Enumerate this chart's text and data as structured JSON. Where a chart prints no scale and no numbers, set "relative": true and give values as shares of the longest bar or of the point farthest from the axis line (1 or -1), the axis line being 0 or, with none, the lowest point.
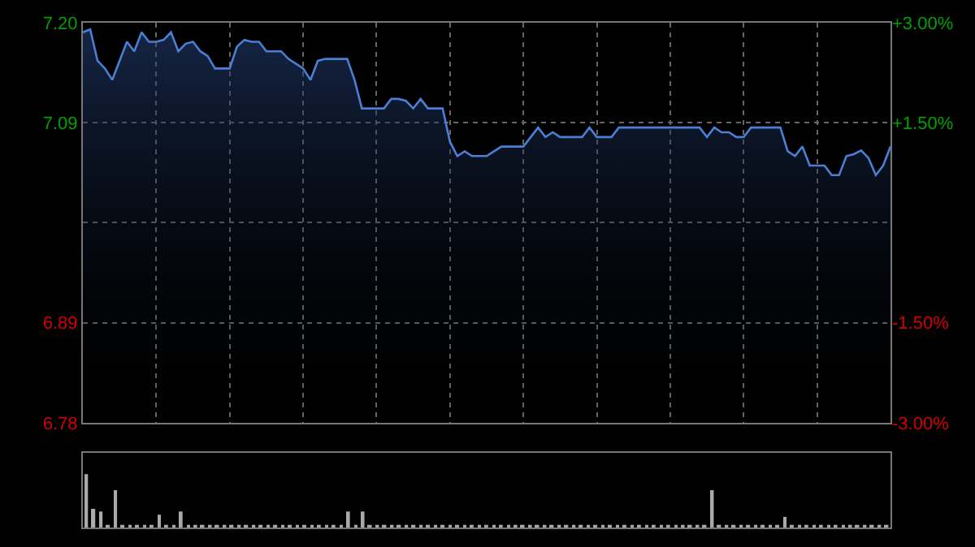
{
  "chart_data": [
    {
      "type": "area",
      "color": "#4a7fd4",
      "categories": [
        null,
        null,
        null,
        null,
        null,
        null,
        null,
        null,
        null,
        null,
        null,
        null,
        null,
        null,
        null,
        null,
        null,
        null,
        null,
        null,
        null,
        null,
        null,
        null,
        null,
        null,
        null,
        null,
        null,
        null,
        null,
        null,
        null,
        null,
        null,
        null,
        null,
        null,
        null,
        null,
        null,
        null,
        null,
        null,
        null,
        null,
        null,
        null,
        null,
        null,
        null,
        null,
        null,
        null,
        null,
        null,
        null,
        null,
        null,
        null,
        null,
        null,
        null,
        null,
        null,
        null,
        null,
        null,
        null,
        null,
        null,
        null,
        null,
        null,
        null,
        null,
        null,
        null,
        null,
        null,
        null,
        null,
        null,
        null,
        null,
        null,
        null,
        null,
        null,
        null,
        null,
        null,
        null,
        null,
        null,
        null,
        null,
        null,
        null,
        null,
        null,
        null,
        null,
        null,
        null,
        null,
        null,
        null,
        null,
        null,
        null
      ],
      "values": [
        7.19,
        7.193,
        7.16,
        7.152,
        7.14,
        7.16,
        7.18,
        7.17,
        7.19,
        7.18,
        7.18,
        7.182,
        7.19,
        7.17,
        7.178,
        7.18,
        7.17,
        7.165,
        7.152,
        7.152,
        7.152,
        7.175,
        7.182,
        7.18,
        7.18,
        7.17,
        7.17,
        7.17,
        7.162,
        7.157,
        7.152,
        7.14,
        7.16,
        7.162,
        7.162,
        7.162,
        7.162,
        7.14,
        7.11,
        7.11,
        7.11,
        7.11,
        7.12,
        7.12,
        7.118,
        7.11,
        7.12,
        7.11,
        7.11,
        7.11,
        7.075,
        7.06,
        7.065,
        7.06,
        7.06,
        7.06,
        7.065,
        7.07,
        7.07,
        7.07,
        7.07,
        7.08,
        7.09,
        7.08,
        7.085,
        7.08,
        7.08,
        7.08,
        7.08,
        7.09,
        7.08,
        7.08,
        7.08,
        7.09,
        7.09,
        7.09,
        7.09,
        7.09,
        7.09,
        7.09,
        7.09,
        7.09,
        7.09,
        7.09,
        7.09,
        7.08,
        7.09,
        7.085,
        7.085,
        7.08,
        7.08,
        7.09,
        7.09,
        7.09,
        7.09,
        7.09,
        7.065,
        7.06,
        7.07,
        7.05,
        7.05,
        7.05,
        7.04,
        7.04,
        7.06,
        7.062,
        7.066,
        7.058,
        7.04,
        7.05,
        7.07
      ],
      "ylim": [
        6.78,
        7.2
      ],
      "yticks": [
        {
          "value": 6.78,
          "label": "6.78"
        },
        {
          "value": 6.885,
          "label": "6.89"
        },
        {
          "value": 6.99,
          "label": null
        },
        {
          "value": 7.095,
          "label": "7.09"
        },
        {
          "value": 7.2,
          "label": "7.20"
        }
      ],
      "y2lim": [
        -3,
        3
      ],
      "y2ticks": [
        {
          "value": -3,
          "label": "-3.00%"
        },
        {
          "value": -1.5,
          "label": "-1.50%"
        },
        {
          "value": 0,
          "label": null
        },
        {
          "value": 1.5,
          "label": "+1.50%"
        },
        {
          "value": 3,
          "label": "+3.00%"
        }
      ],
      "grid": true,
      "tick_labels": "y"
    },
    {
      "type": "bar",
      "color": "#aaaaaa",
      "relative": true,
      "categories": [
        null,
        null,
        null,
        null,
        null,
        null,
        null,
        null,
        null,
        null,
        null,
        null,
        null,
        null,
        null,
        null,
        null,
        null,
        null,
        null,
        null,
        null,
        null,
        null,
        null,
        null,
        null,
        null,
        null,
        null,
        null,
        null,
        null,
        null,
        null,
        null,
        null,
        null,
        null,
        null,
        null,
        null,
        null,
        null,
        null,
        null,
        null,
        null,
        null,
        null,
        null,
        null,
        null,
        null,
        null,
        null,
        null,
        null,
        null,
        null,
        null,
        null,
        null,
        null,
        null,
        null,
        null,
        null,
        null,
        null,
        null,
        null,
        null,
        null,
        null,
        null,
        null,
        null,
        null,
        null,
        null,
        null,
        null,
        null,
        null,
        null,
        null,
        null,
        null,
        null,
        null,
        null,
        null,
        null,
        null,
        null,
        null,
        null,
        null,
        null,
        null,
        null,
        null,
        null,
        null,
        null,
        null,
        null,
        null,
        null,
        null
      ],
      "values": [
        1.0,
        0.35,
        0.3,
        0.05,
        0.7,
        0.05,
        0.05,
        0.05,
        0.05,
        0.05,
        0.24,
        0.05,
        0.05,
        0.3,
        0.05,
        0.05,
        0.05,
        0.05,
        0.05,
        0.05,
        0.05,
        0.05,
        0.05,
        0.05,
        0.05,
        0.05,
        0.05,
        0.05,
        0.05,
        0.05,
        0.05,
        0.05,
        0.05,
        0.05,
        0.05,
        0.05,
        0.3,
        0.05,
        0.3,
        0.05,
        0.05,
        0.05,
        0.05,
        0.05,
        0.05,
        0.05,
        0.05,
        0.05,
        0.05,
        0.05,
        0.05,
        0.05,
        0.05,
        0.05,
        0.05,
        0.05,
        0.05,
        0.05,
        0.05,
        0.05,
        0.05,
        0.05,
        0.05,
        0.05,
        0.05,
        0.05,
        0.05,
        0.05,
        0.05,
        0.05,
        0.05,
        0.05,
        0.05,
        0.05,
        0.05,
        0.05,
        0.05,
        0.05,
        0.05,
        0.05,
        0.05,
        0.05,
        0.05,
        0.05,
        0.05,
        0.05,
        0.7,
        0.05,
        0.05,
        0.05,
        0.05,
        0.05,
        0.05,
        0.05,
        0.05,
        0.05,
        0.2,
        0.05,
        0.05,
        0.05,
        0.05,
        0.05,
        0.05,
        0.05,
        0.05,
        0.05,
        0.05,
        0.05,
        0.05,
        0.05,
        0.05
      ],
      "tick_labels": false
    }
  ]
}
